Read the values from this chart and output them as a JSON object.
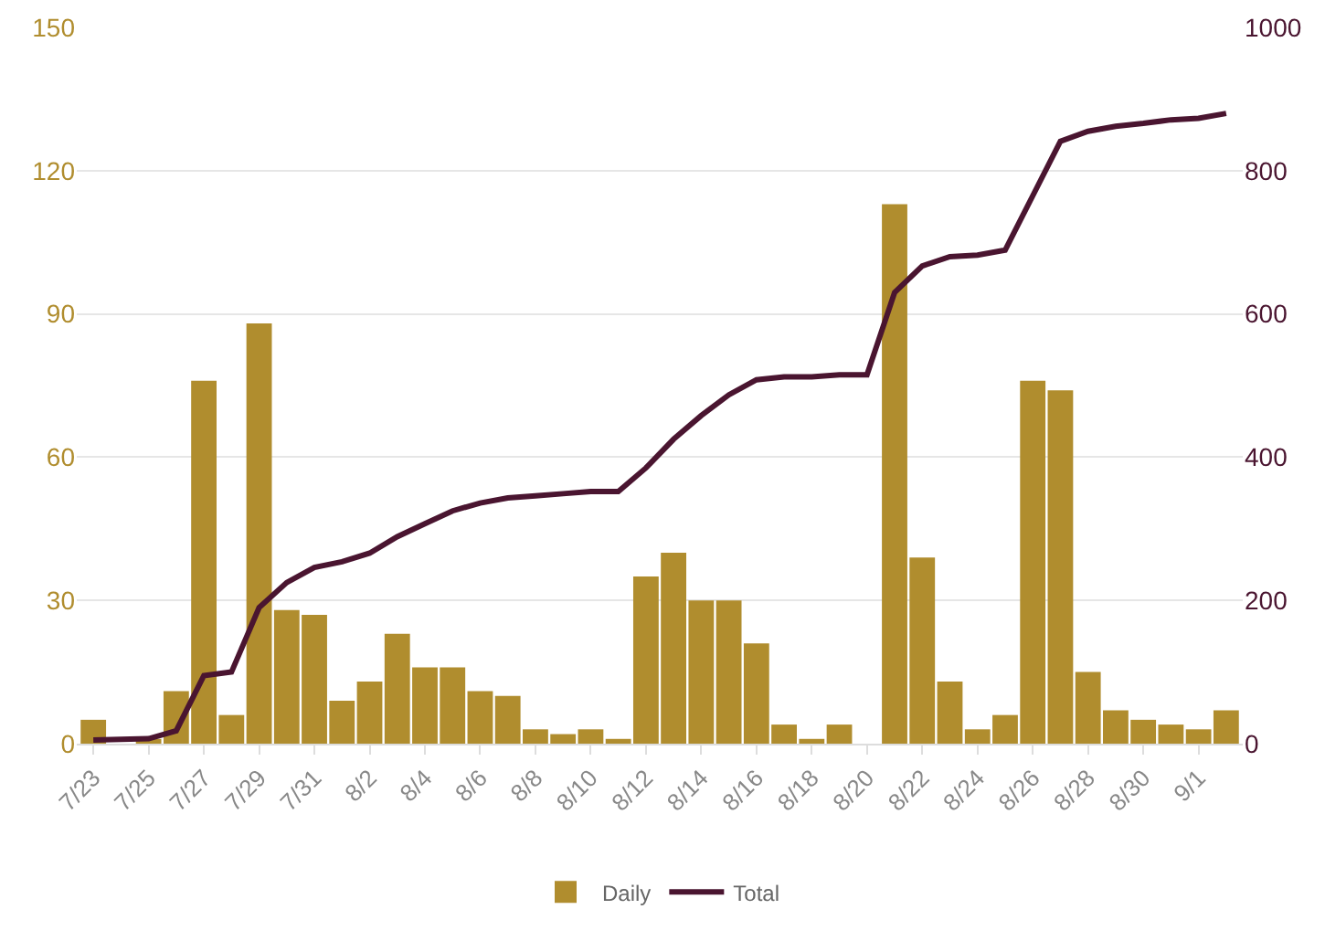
{
  "chart_data": {
    "type": "bar",
    "categories": [
      "7/23",
      null,
      "7/25",
      null,
      "7/27",
      null,
      "7/29",
      null,
      "7/31",
      null,
      "8/2",
      null,
      "8/4",
      null,
      "8/6",
      null,
      "8/8",
      null,
      "8/10",
      null,
      "8/12",
      null,
      "8/14",
      null,
      "8/16",
      null,
      "8/18",
      null,
      "8/20",
      null,
      "8/22",
      null,
      "8/24",
      null,
      "8/26",
      null,
      "8/28",
      null,
      "8/30",
      null,
      "9/1",
      null
    ],
    "series": [
      {
        "name": "Daily",
        "color": "#b08d2e",
        "values": [
          5,
          null,
          1,
          11,
          76,
          6,
          88,
          28,
          27,
          9,
          13,
          23,
          16,
          16,
          11,
          10,
          3,
          2,
          3,
          1,
          35,
          40,
          30,
          30,
          21,
          4,
          1,
          4,
          0,
          113,
          39,
          13,
          3,
          6,
          76,
          74,
          15,
          7,
          5,
          4,
          3,
          7
        ]
      },
      {
        "name": "Total",
        "type": "line",
        "axis": "y2",
        "color": "#4a1530",
        "values": [
          5,
          6,
          7,
          18,
          95,
          100,
          190,
          225,
          246,
          254,
          266,
          289,
          307,
          325,
          336,
          343,
          346,
          349,
          352,
          352,
          385,
          425,
          458,
          487,
          508,
          512,
          512,
          515,
          515,
          630,
          667,
          680,
          682,
          689,
          765,
          841,
          855,
          862,
          866,
          871,
          873,
          880
        ]
      }
    ],
    "ylim": [
      0,
      150
    ],
    "yticks": [
      0,
      30,
      60,
      90,
      120,
      150
    ],
    "y2lim": [
      0,
      1000
    ],
    "y2ticks": [
      0,
      200,
      400,
      600,
      800,
      1000
    ],
    "grid": "y",
    "legend": "bottom",
    "marker": "none",
    "line_style": "solid"
  }
}
